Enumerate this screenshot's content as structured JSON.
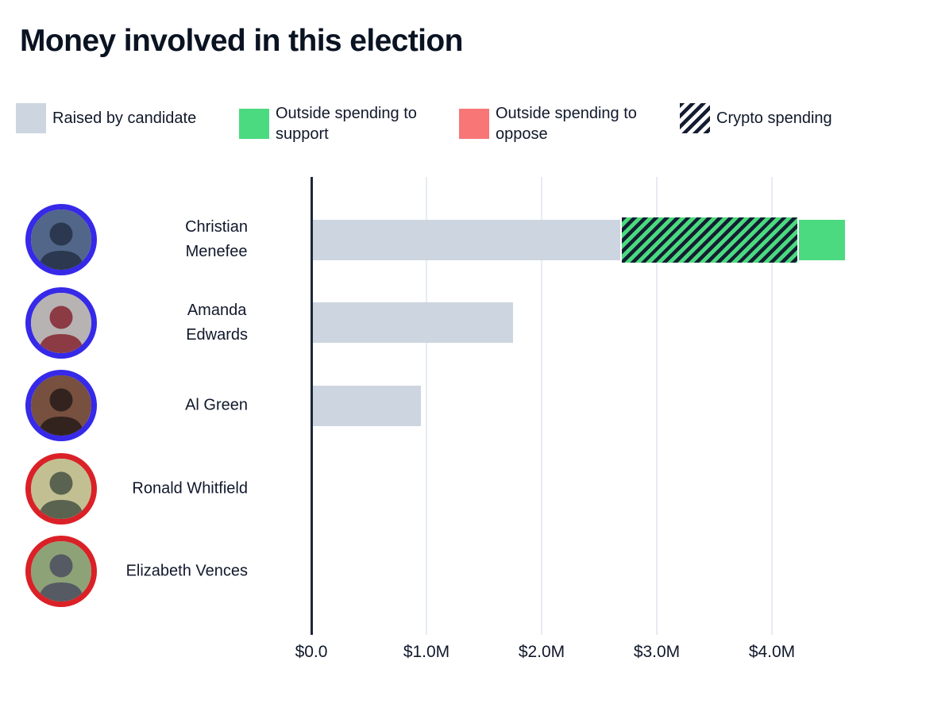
{
  "title": "Money involved in this election",
  "colors": {
    "raised": "#cdd5e1",
    "support": "#4bda7f",
    "oppose": "#f87676",
    "hatch_navy": "#141d31",
    "axis": "#1d2738",
    "gridline": "#e7ebf3",
    "text": "#10182b",
    "ring_blue": "#3629e8",
    "ring_red": "#da2127"
  },
  "legend": [
    {
      "label": "Raised by candidate",
      "swatch": "solid",
      "color": "#cdd5e1"
    },
    {
      "label": "Outside spending to support",
      "swatch": "solid",
      "color": "#4bda7f"
    },
    {
      "label": "Outside spending to oppose",
      "swatch": "solid",
      "color": "#f87676"
    },
    {
      "label": "Crypto spending",
      "swatch": "hatch",
      "color": "#141d31"
    }
  ],
  "chart_data": {
    "type": "bar",
    "orientation": "horizontal",
    "title": "Money involved in this election",
    "unit": "USD millions",
    "categories": [
      "Christian Menefee",
      "Amanda Edwards",
      "Al Green",
      "Ronald Whitfield",
      "Elizabeth Vences"
    ],
    "series": [
      {
        "name": "Raised by candidate",
        "values": [
          2.67,
          1.74,
          0.94,
          0,
          0
        ]
      },
      {
        "name": "Outside spending to support",
        "values": [
          1.95,
          0,
          0,
          0,
          0
        ]
      },
      {
        "name": "Outside spending to oppose",
        "values": [
          0,
          0,
          0,
          0,
          0
        ]
      },
      {
        "name": "Crypto spending",
        "values": [
          1.55,
          0,
          0,
          0,
          0
        ],
        "note": "drawn as hatched overlay on the support segment"
      }
    ],
    "x_ticks": [
      {
        "label": "$0.0",
        "value": 0
      },
      {
        "label": "$1.0M",
        "value": 1
      },
      {
        "label": "$2.0M",
        "value": 2
      },
      {
        "label": "$3.0M",
        "value": 3
      },
      {
        "label": "$4.0M",
        "value": 4
      }
    ],
    "gridlines": [
      1,
      2,
      3,
      4
    ],
    "xlim": [
      0,
      5.3
    ],
    "legend_position": "top"
  },
  "candidates": [
    {
      "name": "Christian Menefee",
      "name_lines": [
        "Christian",
        "Menefee"
      ],
      "ring": "#3629e8",
      "photo_bg": "#526689",
      "photo_fg": "#2b3850"
    },
    {
      "name": "Amanda Edwards",
      "name_lines": [
        "Amanda",
        "Edwards"
      ],
      "ring": "#3629e8",
      "photo_bg": "#b7b3b2",
      "photo_fg": "#8c3a44"
    },
    {
      "name": "Al Green",
      "name_lines": [
        "Al Green"
      ],
      "ring": "#3629e8",
      "photo_bg": "#77503f",
      "photo_fg": "#33231f"
    },
    {
      "name": "Ronald Whitfield",
      "name_lines": [
        "Ronald Whitfield"
      ],
      "ring": "#da2127",
      "photo_bg": "#c2c092",
      "photo_fg": "#5a6350"
    },
    {
      "name": "Elizabeth Vences",
      "name_lines": [
        "Elizabeth Vences"
      ],
      "ring": "#da2127",
      "photo_bg": "#8ea277",
      "photo_fg": "#555a63"
    }
  ]
}
